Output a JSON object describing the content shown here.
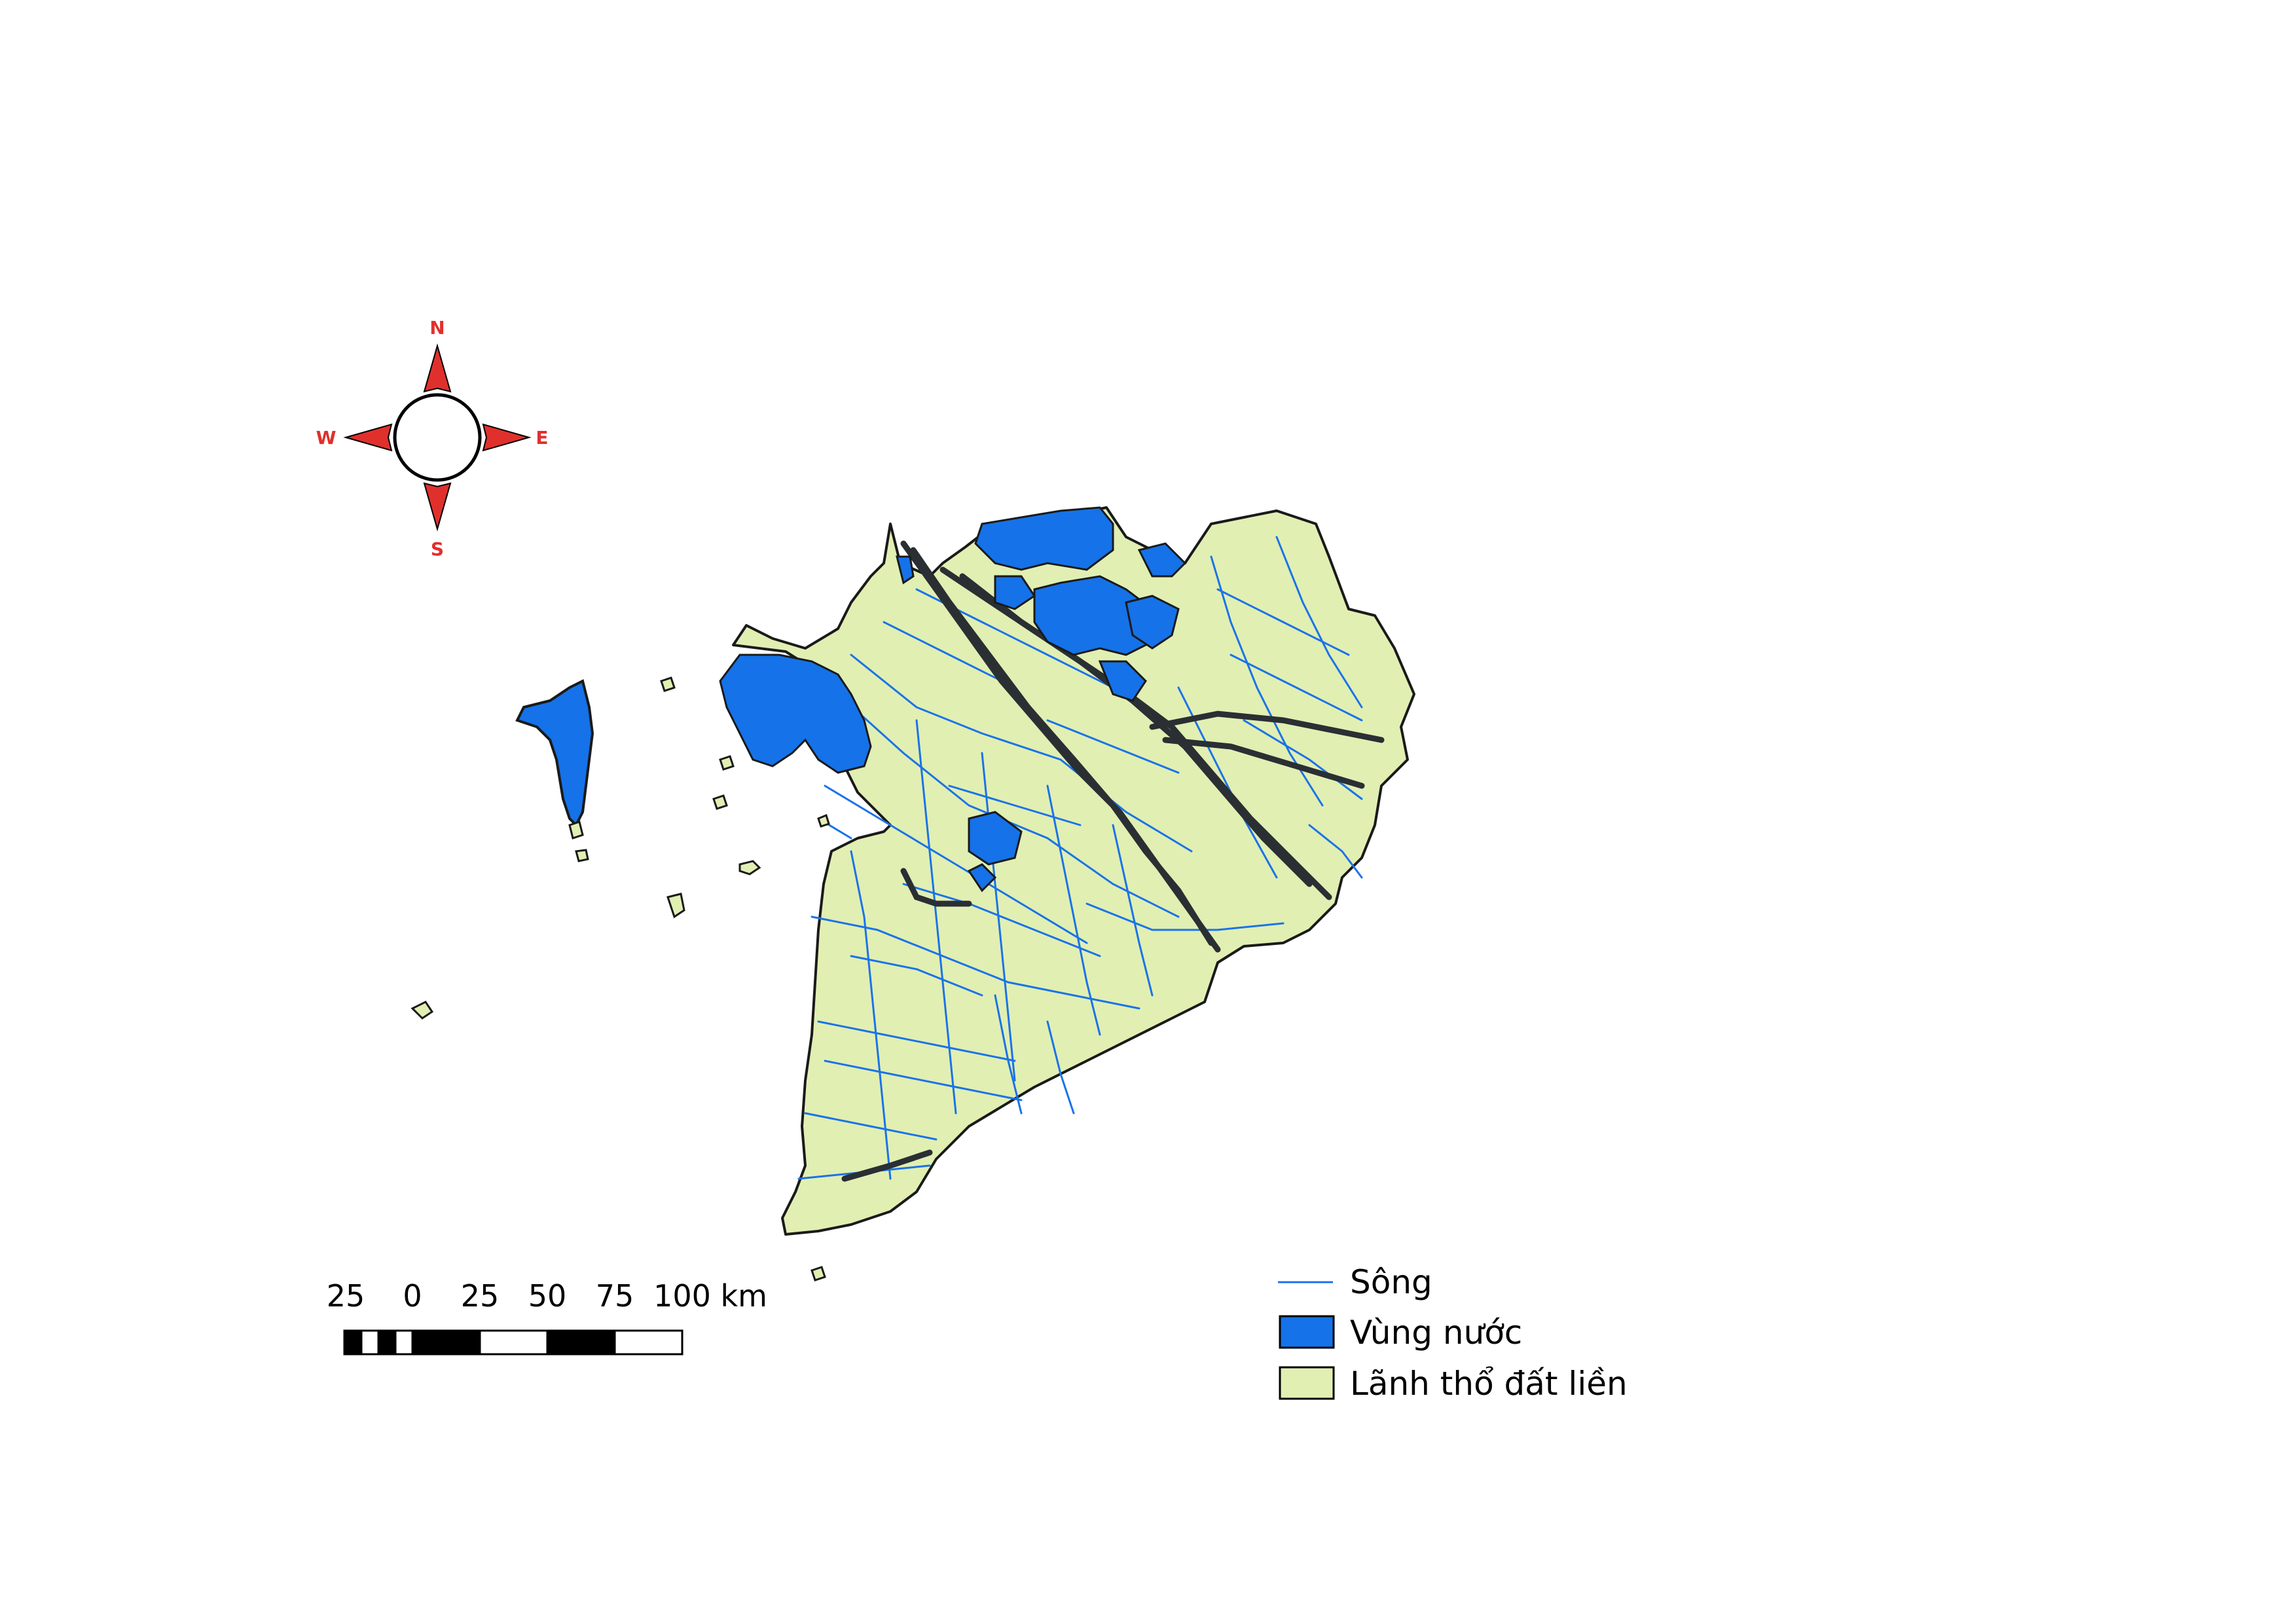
{
  "colors": {
    "land_fill": "#e1efb3",
    "water_fill": "#1572e8",
    "river_stroke": "#1a73e8",
    "boundary": "#1a1a1a",
    "compass_red": "#e0302c"
  },
  "compass": {
    "n": "N",
    "s": "S",
    "e": "E",
    "w": "W"
  },
  "scalebar": {
    "ticks": [
      "25",
      "0",
      "25",
      "50",
      "75",
      "100 km"
    ]
  },
  "legend": {
    "items": [
      {
        "label": "Sông",
        "symbol": "line-icon"
      },
      {
        "label": "Vùng nước",
        "symbol": "blue-fill-icon"
      },
      {
        "label": "Lãnh thổ đất liền",
        "symbol": "green-fill-icon"
      }
    ]
  }
}
